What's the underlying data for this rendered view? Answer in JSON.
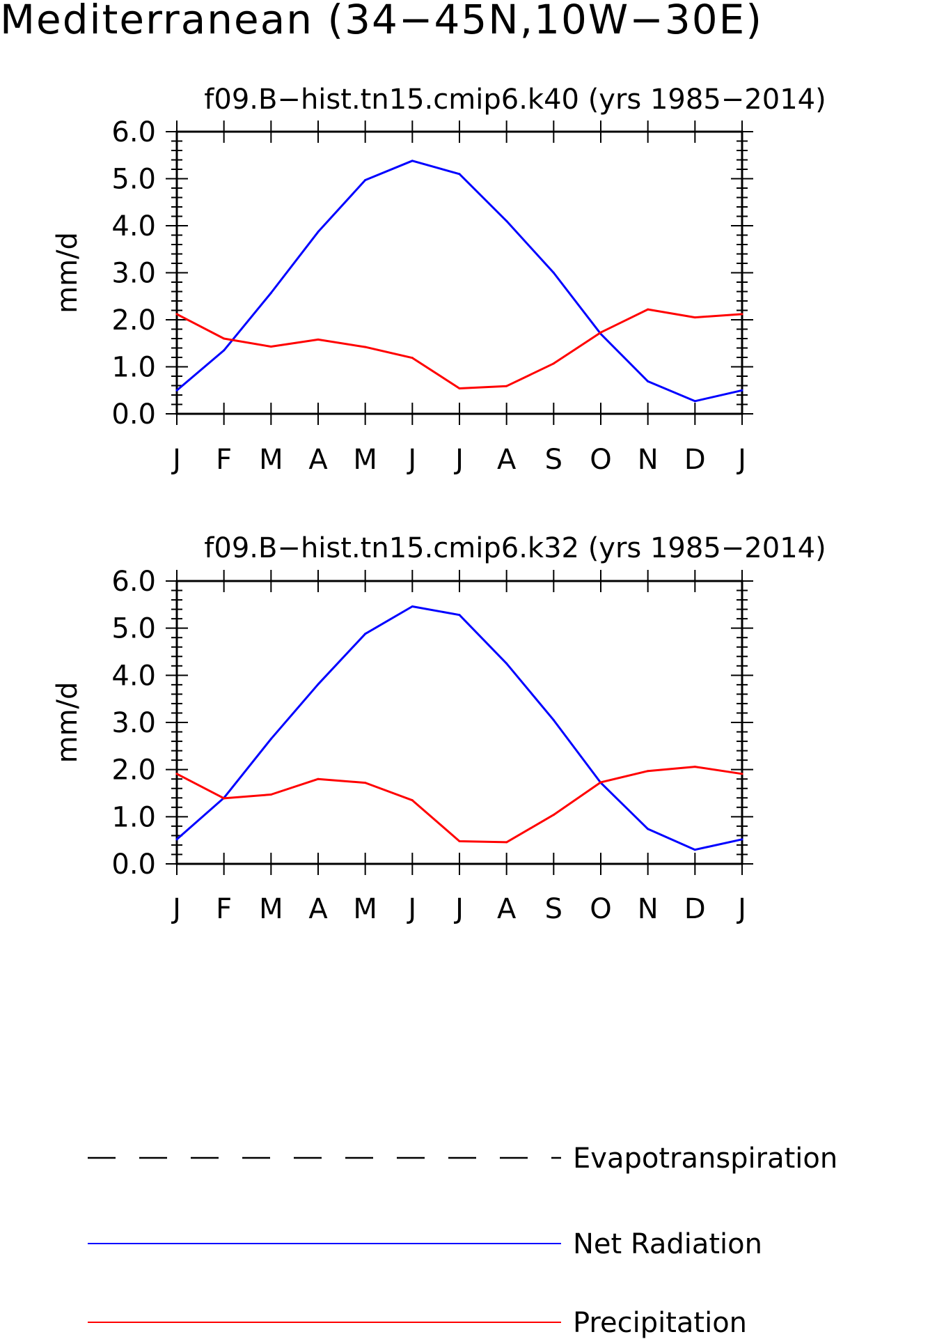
{
  "title": "Mediterranean (34−45N,10W−30E)",
  "colors": {
    "net_radiation": "#0000ff",
    "precipitation": "#ff0000",
    "evapotranspiration": "#000000"
  },
  "legend": [
    {
      "label": "Evapotranspiration",
      "style": "dashed",
      "color": "#000000"
    },
    {
      "label": "Net Radiation",
      "style": "solid",
      "color": "#0000ff"
    },
    {
      "label": "Precipitation",
      "style": "solid",
      "color": "#ff0000"
    }
  ],
  "chart_data": [
    {
      "type": "line",
      "title": "f09.B−hist.tn15.cmip6.k40 (yrs 1985−2014)",
      "ylabel": "mm/d",
      "xlabel": "",
      "categories": [
        "J",
        "F",
        "M",
        "A",
        "M",
        "J",
        "J",
        "A",
        "S",
        "O",
        "N",
        "D",
        "J"
      ],
      "ylim": [
        0,
        6
      ],
      "yticks": [
        "0.0",
        "1.0",
        "2.0",
        "3.0",
        "4.0",
        "5.0",
        "6.0"
      ],
      "series": [
        {
          "name": "Net Radiation",
          "color": "#0000ff",
          "values": [
            0.5,
            1.35,
            2.57,
            3.87,
            4.97,
            5.38,
            5.1,
            4.1,
            3.0,
            1.7,
            0.69,
            0.27,
            0.5
          ]
        },
        {
          "name": "Precipitation",
          "color": "#ff0000",
          "values": [
            2.12,
            1.6,
            1.43,
            1.58,
            1.42,
            1.19,
            0.54,
            0.59,
            1.07,
            1.73,
            2.22,
            2.05,
            2.12
          ]
        }
      ]
    },
    {
      "type": "line",
      "title": "f09.B−hist.tn15.cmip6.k32 (yrs 1985−2014)",
      "ylabel": "mm/d",
      "xlabel": "",
      "categories": [
        "J",
        "F",
        "M",
        "A",
        "M",
        "J",
        "J",
        "A",
        "S",
        "O",
        "N",
        "D",
        "J"
      ],
      "ylim": [
        0,
        6
      ],
      "yticks": [
        "0.0",
        "1.0",
        "2.0",
        "3.0",
        "4.0",
        "5.0",
        "6.0"
      ],
      "series": [
        {
          "name": "Net Radiation",
          "color": "#0000ff",
          "values": [
            0.52,
            1.4,
            2.65,
            3.81,
            4.88,
            5.46,
            5.28,
            4.25,
            3.05,
            1.72,
            0.74,
            0.3,
            0.52
          ]
        },
        {
          "name": "Precipitation",
          "color": "#ff0000",
          "values": [
            1.91,
            1.39,
            1.47,
            1.8,
            1.72,
            1.35,
            0.48,
            0.46,
            1.04,
            1.73,
            1.97,
            2.06,
            1.91
          ]
        }
      ]
    }
  ]
}
